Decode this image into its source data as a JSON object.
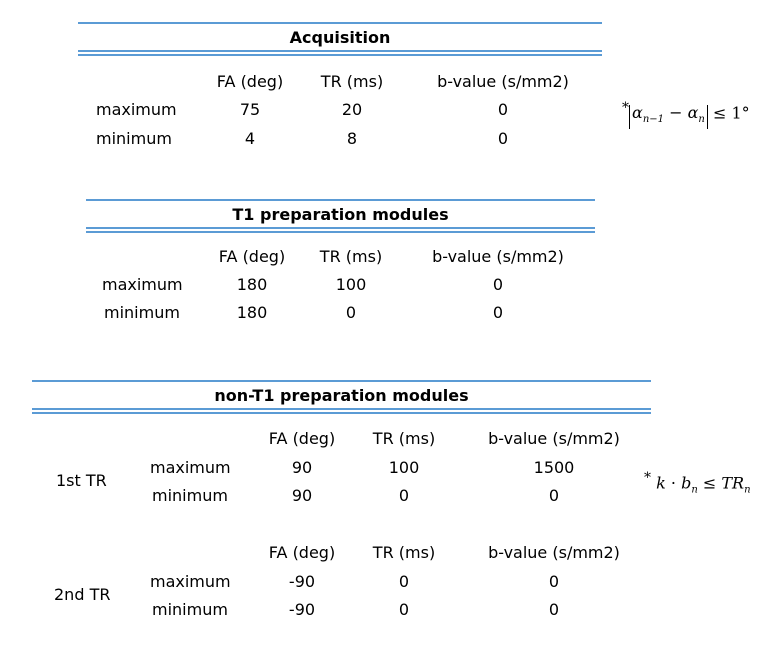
{
  "acquisition": {
    "title": "Acquisition",
    "headers": [
      "FA (deg)",
      "TR (ms)",
      "b-value (s/mm2)"
    ],
    "rows": [
      {
        "label": "maximum",
        "values": [
          "75",
          "20",
          "0"
        ]
      },
      {
        "label": "minimum",
        "values": [
          "4",
          "8",
          "0"
        ]
      }
    ],
    "constraint": {
      "star": "*",
      "lhs_a": "α",
      "sub_a": "n−1",
      "minus": "−",
      "lhs_b": "α",
      "sub_b": "n",
      "rel": "≤ 1°"
    }
  },
  "t1_prep": {
    "title": "T1 preparation modules",
    "headers": [
      "FA (deg)",
      "TR (ms)",
      "b-value (s/mm2)"
    ],
    "rows": [
      {
        "label": "maximum",
        "values": [
          "180",
          "100",
          "0"
        ]
      },
      {
        "label": "minimum",
        "values": [
          "180",
          "0",
          "0"
        ]
      }
    ]
  },
  "non_t1_prep": {
    "title": "non-T1 preparation modules",
    "groups": [
      {
        "label": "1st TR",
        "headers": [
          "FA (deg)",
          "TR (ms)",
          "b-value (s/mm2)"
        ],
        "rows": [
          {
            "label": "maximum",
            "values": [
              "90",
              "100",
              "1500"
            ]
          },
          {
            "label": "minimum",
            "values": [
              "90",
              "0",
              "0"
            ]
          }
        ]
      },
      {
        "label": "2nd TR",
        "headers": [
          "FA (deg)",
          "TR (ms)",
          "b-value (s/mm2)"
        ],
        "rows": [
          {
            "label": "maximum",
            "values": [
              "-90",
              "0",
              "0"
            ]
          },
          {
            "label": "minimum",
            "values": [
              "-90",
              "0",
              "0"
            ]
          }
        ]
      }
    ],
    "constraint": {
      "star": "*",
      "k": "k",
      "dot": "·",
      "b": "b",
      "sub_b": "n",
      "rel": "≤",
      "tr": "TR",
      "sub_tr": "n"
    }
  }
}
